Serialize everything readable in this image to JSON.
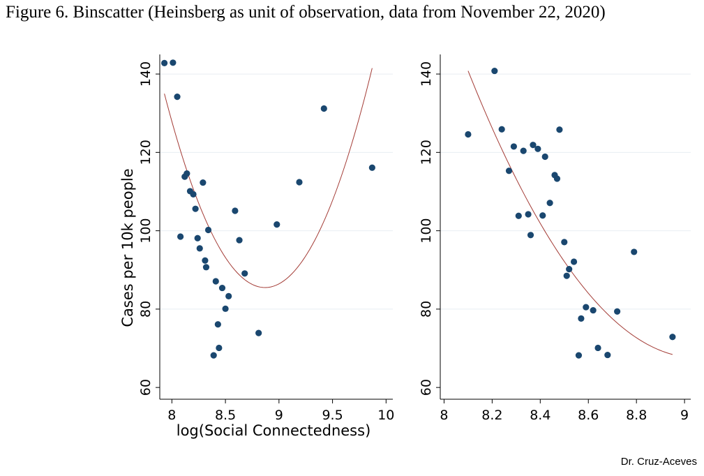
{
  "figure_title": "Figure 6. Binscatter (Heinsberg as unit of observation, data from November 22, 2020)",
  "credit": "Dr. Cruz-Aceves",
  "colors": {
    "points": "#1a476f",
    "fit": "#a33b35",
    "grid": "#e8eef2",
    "axis": "#000000"
  },
  "chart_data": [
    {
      "type": "scatter",
      "xlabel": "log(Social Connectedness)",
      "ylabel": "Cases per 10k people",
      "xlim": [
        7.9,
        10.05
      ],
      "ylim": [
        57,
        145
      ],
      "xticks": [
        8,
        8.5,
        9,
        9.5,
        10
      ],
      "xtick_labels": [
        "8",
        "8.5",
        "9",
        "9.5",
        "10"
      ],
      "yticks": [
        60,
        80,
        100,
        120,
        140
      ],
      "ytick_labels": [
        "60",
        "80",
        "100",
        "120",
        "140"
      ],
      "grid": true,
      "fit": {
        "type": "quadratic",
        "x_range": [
          7.93,
          9.87
        ],
        "vertex_x": 8.87,
        "vertex_y": 85.5,
        "a": 56
      },
      "points": [
        [
          7.93,
          142.8
        ],
        [
          8.01,
          142.9
        ],
        [
          8.05,
          134.2
        ],
        [
          8.08,
          98.5
        ],
        [
          8.12,
          113.8
        ],
        [
          8.14,
          114.6
        ],
        [
          8.17,
          110.1
        ],
        [
          8.2,
          109.3
        ],
        [
          8.22,
          105.6
        ],
        [
          8.24,
          98.1
        ],
        [
          8.26,
          95.5
        ],
        [
          8.29,
          112.3
        ],
        [
          8.31,
          92.4
        ],
        [
          8.32,
          90.7
        ],
        [
          8.34,
          100.2
        ],
        [
          8.39,
          68.2
        ],
        [
          8.41,
          87.1
        ],
        [
          8.43,
          76.1
        ],
        [
          8.44,
          70.1
        ],
        [
          8.47,
          85.4
        ],
        [
          8.5,
          80.1
        ],
        [
          8.53,
          83.3
        ],
        [
          8.59,
          105.1
        ],
        [
          8.63,
          97.6
        ],
        [
          8.68,
          89.1
        ],
        [
          8.81,
          73.9
        ],
        [
          8.98,
          101.6
        ],
        [
          9.19,
          112.4
        ],
        [
          9.42,
          131.2
        ],
        [
          9.87,
          116.1
        ]
      ]
    },
    {
      "type": "scatter",
      "xlabel": "",
      "ylabel": "",
      "xlim": [
        7.99,
        9.02
      ],
      "ylim": [
        57,
        145
      ],
      "xticks": [
        8,
        8.2,
        8.4,
        8.6,
        8.8,
        9
      ],
      "xtick_labels": [
        "8",
        "8.2",
        "8.4",
        "8.6",
        "8.8",
        "9"
      ],
      "yticks": [
        60,
        80,
        100,
        120,
        140
      ],
      "ytick_labels": [
        "60",
        "80",
        "100",
        "120",
        "140"
      ],
      "grid": true,
      "fit": {
        "type": "quadratic",
        "x_range": [
          8.1,
          8.95
        ],
        "x0": 8.1,
        "y0": 140.8,
        "slope": -154,
        "curv": 81
      },
      "points": [
        [
          8.1,
          124.6
        ],
        [
          8.21,
          140.8
        ],
        [
          8.24,
          125.9
        ],
        [
          8.27,
          115.3
        ],
        [
          8.29,
          121.5
        ],
        [
          8.31,
          103.8
        ],
        [
          8.33,
          120.4
        ],
        [
          8.35,
          104.2
        ],
        [
          8.36,
          98.9
        ],
        [
          8.37,
          121.9
        ],
        [
          8.39,
          120.9
        ],
        [
          8.41,
          103.9
        ],
        [
          8.42,
          118.9
        ],
        [
          8.44,
          107.1
        ],
        [
          8.46,
          114.2
        ],
        [
          8.47,
          113.3
        ],
        [
          8.48,
          125.8
        ],
        [
          8.5,
          97.1
        ],
        [
          8.51,
          88.5
        ],
        [
          8.52,
          90.2
        ],
        [
          8.54,
          92.1
        ],
        [
          8.56,
          68.2
        ],
        [
          8.57,
          77.6
        ],
        [
          8.59,
          80.5
        ],
        [
          8.62,
          79.7
        ],
        [
          8.64,
          70.1
        ],
        [
          8.68,
          68.3
        ],
        [
          8.72,
          79.4
        ],
        [
          8.79,
          94.6
        ],
        [
          8.95,
          72.9
        ]
      ]
    }
  ]
}
